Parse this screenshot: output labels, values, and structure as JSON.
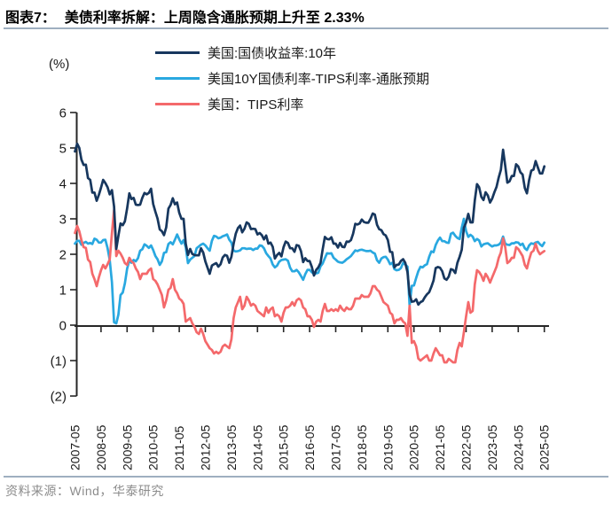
{
  "header": {
    "figure_label": "图表7：",
    "title": "美债利率拆解：上周隐含通胀预期上升至 2.33%"
  },
  "footer": {
    "source": "资料来源：Wind，华泰研究"
  },
  "colors": {
    "rule": "#9FAFC0",
    "axis": "#262626",
    "tick_text": "#1a1a1a",
    "footer_text": "#8C8C8C",
    "navy": "#17375E",
    "sky_blue": "#29A8E0",
    "salmon_red": "#F4696B"
  },
  "chart_data": {
    "type": "line",
    "unit_label": "(%)",
    "grid": false,
    "legend_position": "top-center",
    "ylim": [
      -2,
      6
    ],
    "y_ticks": [
      6,
      5,
      4,
      3,
      2,
      1,
      0,
      -1,
      -2
    ],
    "y_tick_labels": [
      "6",
      "5",
      "4",
      "3",
      "2",
      "1",
      "0",
      "(1)",
      "(2)"
    ],
    "x_labels": [
      "2007-05",
      "2008-05",
      "2009-05",
      "2010-05",
      "2011-05",
      "2012-05",
      "2013-05",
      "2014-05",
      "2015-05",
      "2016-05",
      "2017-05",
      "2018-05",
      "2019-05",
      "2020-05",
      "2021-05",
      "2022-05",
      "2023-05",
      "2024-05",
      "2025-05"
    ],
    "x_start": "2007-05",
    "x_end": "2025-05",
    "points_per_year": 12,
    "series": [
      {
        "key": "breakeven",
        "name": "美国10Y国债利率-TIPS利率-通胀预期",
        "color": "#29A8E0",
        "values": [
          2.3,
          2.38,
          2.38,
          2.27,
          2.32,
          2.35,
          2.3,
          2.32,
          2.29,
          2.44,
          2.41,
          2.33,
          2.33,
          2.4,
          2.41,
          2.17,
          1.84,
          1.21,
          0.08,
          0.05,
          0.3,
          0.85,
          0.92,
          1.18,
          1.59,
          1.82,
          1.76,
          1.84,
          1.8,
          1.89,
          2.1,
          2.14,
          2.28,
          2.24,
          2.18,
          2.25,
          2.12,
          1.95,
          1.86,
          1.7,
          1.8,
          2.04,
          2.06,
          2.29,
          2.34,
          2.28,
          2.41,
          2.56,
          2.42,
          2.3,
          2.4,
          2.2,
          1.75,
          1.85,
          1.9,
          1.95,
          2.17,
          2.22,
          2.27,
          2.3,
          2.25,
          2.17,
          2.1,
          2.38,
          2.52,
          2.5,
          2.45,
          2.47,
          2.51,
          2.53,
          2.56,
          2.41,
          2.33,
          2.1,
          2.08,
          2.09,
          2.11,
          2.17,
          2.17,
          2.15,
          2.16,
          2.16,
          2.12,
          2.16,
          2.16,
          2.25,
          2.24,
          2.17,
          2.03,
          1.95,
          1.88,
          1.71,
          1.63,
          1.68,
          1.79,
          1.84,
          1.85,
          1.86,
          1.82,
          1.62,
          1.52,
          1.52,
          1.56,
          1.49,
          1.39,
          1.28,
          1.44,
          1.56,
          1.56,
          1.49,
          1.45,
          1.46,
          1.48,
          1.66,
          1.74,
          1.89,
          2.03,
          2.02,
          2.03,
          1.9,
          1.85,
          1.79,
          1.77,
          1.76,
          1.8,
          1.86,
          1.9,
          1.95,
          2.03,
          2.11,
          2.09,
          2.12,
          2.13,
          2.11,
          2.09,
          2.09,
          2.1,
          2.05,
          2.02,
          1.83,
          1.76,
          1.88,
          1.92,
          1.93,
          1.85,
          1.72,
          1.76,
          1.58,
          1.55,
          1.56,
          1.61,
          1.76,
          1.71,
          1.65,
          0.55,
          1.11,
          1.12,
          1.33,
          1.52,
          1.65,
          1.63,
          1.69,
          1.72,
          1.93,
          2.08,
          2.06,
          2.26,
          2.39,
          2.47,
          2.37,
          2.37,
          2.33,
          2.32,
          2.58,
          2.61,
          2.52,
          2.46,
          2.43,
          2.75,
          3.0,
          2.65,
          2.49,
          2.55,
          2.5,
          2.37,
          2.43,
          2.39,
          2.22,
          2.28,
          2.3,
          2.31,
          2.26,
          2.22,
          2.25,
          2.25,
          2.27,
          2.33,
          2.5,
          2.3,
          2.27,
          2.26,
          2.31,
          2.31,
          2.34,
          2.33,
          2.26,
          2.3,
          2.17,
          2.12,
          2.25,
          2.31,
          2.29,
          2.33,
          2.35,
          2.28,
          2.23,
          2.33
        ]
      },
      {
        "key": "tips-yield",
        "name": "美国：TIPS利率",
        "color": "#F4696B",
        "values": [
          2.6,
          2.8,
          2.65,
          2.4,
          2.2,
          2.18,
          1.85,
          1.78,
          1.45,
          1.3,
          1.1,
          1.35,
          1.55,
          1.7,
          1.6,
          1.72,
          1.85,
          2.6,
          3.25,
          1.95,
          2.1,
          2.02,
          1.9,
          1.75,
          1.7,
          1.9,
          1.8,
          1.75,
          1.6,
          1.5,
          1.3,
          1.45,
          1.45,
          1.45,
          1.55,
          1.6,
          1.3,
          1.25,
          1.15,
          1.0,
          0.85,
          0.5,
          0.7,
          1.0,
          1.05,
          1.3,
          1.0,
          0.9,
          0.75,
          0.7,
          0.6,
          0.1,
          0.15,
          0.2,
          0.05,
          -0.05,
          -0.2,
          -0.25,
          -0.1,
          -0.25,
          -0.45,
          -0.55,
          -0.65,
          -0.7,
          -0.8,
          -0.75,
          -0.8,
          -0.75,
          -0.6,
          -0.55,
          -0.6,
          -0.65,
          -0.4,
          0.2,
          0.5,
          0.65,
          0.8,
          0.45,
          0.55,
          0.8,
          0.7,
          0.55,
          0.6,
          0.55,
          0.4,
          0.35,
          0.3,
          0.25,
          0.5,
          0.35,
          0.45,
          0.5,
          0.25,
          0.3,
          0.25,
          0.1,
          0.35,
          0.5,
          0.5,
          0.55,
          0.65,
          0.55,
          0.7,
          0.75,
          0.7,
          0.5,
          0.45,
          0.25,
          0.25,
          0.15,
          -0.05,
          0.1,
          0.15,
          0.1,
          0.4,
          0.6,
          0.4,
          0.4,
          0.45,
          0.4,
          0.45,
          0.4,
          0.55,
          0.45,
          0.4,
          0.5,
          0.45,
          0.45,
          0.55,
          0.75,
          0.75,
          0.75,
          0.85,
          0.8,
          0.8,
          0.8,
          0.9,
          1.1,
          1.1,
          1.0,
          0.95,
          0.8,
          0.65,
          0.6,
          0.55,
          0.35,
          0.3,
          0.05,
          0.15,
          0.15,
          0.2,
          0.1,
          0.05,
          -0.3,
          0.55,
          -0.5,
          -0.45,
          -0.6,
          -0.94,
          -1.0,
          -0.95,
          -0.9,
          -0.85,
          -1.0,
          -1.0,
          -0.8,
          -0.65,
          -0.75,
          -0.85,
          -0.85,
          -1.05,
          -1.05,
          -0.95,
          -1.0,
          -1.05,
          -1.05,
          -0.7,
          -0.5,
          -0.6,
          -0.2,
          0.25,
          0.65,
          0.35,
          0.4,
          1.15,
          1.55,
          1.5,
          1.4,
          1.25,
          1.45,
          1.35,
          1.2,
          1.35,
          1.5,
          1.65,
          1.9,
          2.05,
          2.45,
          2.2,
          1.75,
          1.8,
          1.9,
          1.9,
          2.2,
          2.15,
          2.05,
          1.95,
          1.7,
          1.6,
          1.85,
          2.05,
          2.1,
          2.3,
          2.1,
          2.0,
          2.05,
          2.09
        ]
      },
      {
        "key": "us10y-yield",
        "name": "美国:国债收益率:10年",
        "color": "#17375E",
        "values": [
          4.9,
          5.12,
          5.0,
          4.67,
          4.52,
          4.53,
          4.15,
          4.1,
          3.74,
          3.74,
          3.51,
          3.68,
          3.88,
          4.1,
          4.01,
          3.89,
          3.69,
          3.81,
          3.35,
          2.15,
          2.52,
          2.87,
          2.82,
          2.93,
          3.29,
          3.72,
          3.56,
          3.59,
          3.4,
          3.39,
          3.4,
          3.59,
          3.73,
          3.69,
          3.73,
          3.85,
          3.42,
          3.2,
          3.01,
          2.7,
          2.65,
          2.54,
          2.76,
          3.29,
          3.39,
          3.58,
          3.41,
          3.46,
          3.17,
          3.0,
          3.0,
          2.3,
          1.98,
          2.15,
          2.01,
          1.98,
          1.97,
          1.97,
          2.17,
          2.05,
          1.8,
          1.62,
          1.45,
          1.68,
          1.72,
          1.75,
          1.65,
          1.72,
          1.91,
          1.98,
          1.96,
          1.76,
          1.93,
          2.3,
          2.58,
          2.74,
          2.81,
          2.62,
          2.72,
          2.9,
          2.86,
          2.71,
          2.72,
          2.71,
          2.56,
          2.6,
          2.54,
          2.42,
          2.53,
          2.3,
          2.33,
          2.21,
          1.88,
          1.98,
          2.04,
          1.94,
          2.2,
          2.36,
          2.32,
          2.17,
          2.17,
          2.07,
          2.26,
          2.24,
          2.09,
          1.78,
          1.89,
          1.81,
          1.81,
          1.64,
          1.4,
          1.56,
          1.63,
          1.76,
          2.14,
          2.49,
          2.43,
          2.42,
          2.48,
          2.3,
          2.3,
          2.19,
          2.32,
          2.21,
          2.2,
          2.36,
          2.35,
          2.4,
          2.58,
          2.86,
          2.84,
          2.87,
          2.98,
          2.91,
          2.89,
          2.89,
          3.0,
          3.15,
          3.12,
          2.83,
          2.71,
          2.68,
          2.57,
          2.53,
          2.4,
          2.07,
          2.06,
          1.63,
          1.7,
          1.71,
          1.81,
          1.86,
          1.76,
          1.5,
          0.87,
          0.66,
          0.67,
          0.73,
          0.58,
          0.65,
          0.68,
          0.79,
          0.87,
          0.93,
          1.08,
          1.26,
          1.61,
          1.64,
          1.62,
          1.52,
          1.32,
          1.28,
          1.37,
          1.58,
          1.56,
          1.47,
          1.76,
          1.93,
          2.13,
          2.75,
          2.9,
          3.14,
          2.9,
          2.9,
          3.52,
          3.98,
          3.89,
          3.62,
          3.53,
          3.75,
          3.66,
          3.46,
          3.57,
          3.75,
          3.9,
          4.17,
          4.38,
          4.95,
          4.5,
          4.02,
          4.06,
          4.21,
          4.21,
          4.54,
          4.48,
          4.31,
          4.25,
          3.87,
          3.72,
          4.1,
          4.36,
          4.39,
          4.63,
          4.45,
          4.28,
          4.28,
          4.48
        ]
      }
    ]
  },
  "legend": {
    "order_note": "top legend lists: navy 10Y yield, sky-blue breakeven, red TIPS"
  }
}
